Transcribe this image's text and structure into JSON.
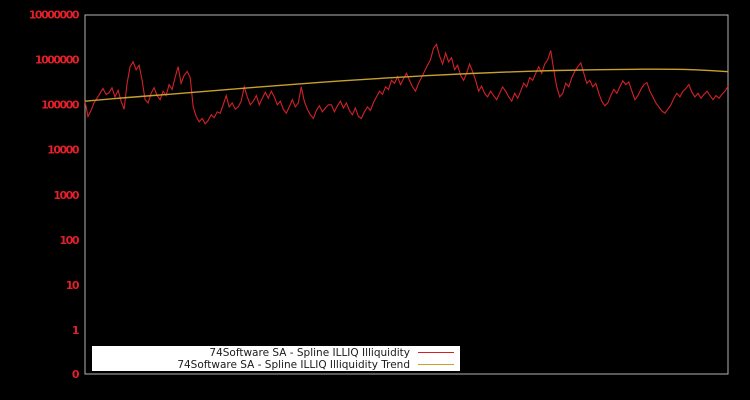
{
  "window": {
    "title": "74Software SA ILLIQ illiquidity chart"
  },
  "colors": {
    "background": "#000000",
    "axis_border": "#b3b3b3",
    "tick_label_red": "#e0202a",
    "series_red": "#d42127",
    "trend_gold": "#c8a02c",
    "legend_bg": "#ffffff",
    "legend_text": "#1a1a1a"
  },
  "legend": {
    "items": [
      {
        "label": "74Software SA - Spline ILLIQ Illiquidity",
        "color": "#d42127"
      },
      {
        "label": "74Software SA - Spline ILLIQ Illiquidity Trend",
        "color": "#c8a02c"
      }
    ]
  },
  "chart_data": {
    "type": "line",
    "title": "",
    "xlabel": "",
    "ylabel": "",
    "y_scale": "log",
    "ylim": [
      1,
      10000000
    ],
    "y_ticks": [
      "10000000",
      "1000000",
      "100000",
      "10000",
      "1000",
      "100",
      "10",
      "1",
      "0"
    ],
    "x_tick_labels": [],
    "grid": false,
    "legend_position": "bottom-left",
    "series": [
      {
        "name": "74Software SA - Spline ILLIQ Illiquidity",
        "color": "#d42127",
        "values": [
          120000,
          55000,
          75000,
          110000,
          140000,
          180000,
          230000,
          170000,
          185000,
          240000,
          150000,
          210000,
          120000,
          80000,
          300000,
          700000,
          900000,
          600000,
          750000,
          350000,
          130000,
          110000,
          180000,
          240000,
          160000,
          130000,
          200000,
          160000,
          280000,
          220000,
          400000,
          700000,
          300000,
          450000,
          550000,
          400000,
          90000,
          55000,
          42000,
          50000,
          38000,
          45000,
          60000,
          52000,
          70000,
          65000,
          100000,
          160000,
          90000,
          110000,
          80000,
          90000,
          120000,
          250000,
          150000,
          100000,
          120000,
          160000,
          100000,
          140000,
          190000,
          140000,
          200000,
          150000,
          100000,
          120000,
          80000,
          65000,
          90000,
          130000,
          90000,
          110000,
          250000,
          120000,
          80000,
          60000,
          50000,
          75000,
          95000,
          70000,
          85000,
          100000,
          100000,
          70000,
          95000,
          120000,
          85000,
          110000,
          75000,
          60000,
          85000,
          55000,
          50000,
          70000,
          90000,
          75000,
          110000,
          150000,
          200000,
          170000,
          250000,
          220000,
          350000,
          300000,
          420000,
          280000,
          380000,
          500000,
          350000,
          250000,
          200000,
          300000,
          400000,
          550000,
          750000,
          1000000,
          1800000,
          2200000,
          1200000,
          800000,
          1400000,
          900000,
          1100000,
          600000,
          750000,
          450000,
          350000,
          500000,
          800000,
          550000,
          350000,
          200000,
          260000,
          180000,
          150000,
          200000,
          160000,
          130000,
          180000,
          250000,
          200000,
          150000,
          120000,
          180000,
          140000,
          200000,
          300000,
          250000,
          400000,
          350000,
          500000,
          700000,
          500000,
          800000,
          1000000,
          1600000,
          600000,
          250000,
          150000,
          180000,
          300000,
          250000,
          400000,
          550000,
          700000,
          850000,
          500000,
          300000,
          350000,
          250000,
          300000,
          180000,
          120000,
          95000,
          110000,
          160000,
          220000,
          180000,
          250000,
          340000,
          280000,
          320000,
          200000,
          130000,
          160000,
          220000,
          280000,
          310000,
          200000,
          150000,
          110000,
          90000,
          73000,
          65000,
          80000,
          100000,
          140000,
          180000,
          150000,
          200000,
          230000,
          280000,
          190000,
          150000,
          180000,
          140000,
          170000,
          200000,
          160000,
          130000,
          160000,
          140000,
          170000,
          200000,
          260000
        ]
      },
      {
        "name": "74Software SA - Spline ILLIQ Illiquidity Trend",
        "color": "#c8a02c",
        "values": [
          120000,
          145000,
          172000,
          205000,
          245000,
          290000,
          340000,
          390000,
          445000,
          495000,
          540000,
          575000,
          600000,
          615000,
          608000,
          545000
        ]
      }
    ]
  }
}
